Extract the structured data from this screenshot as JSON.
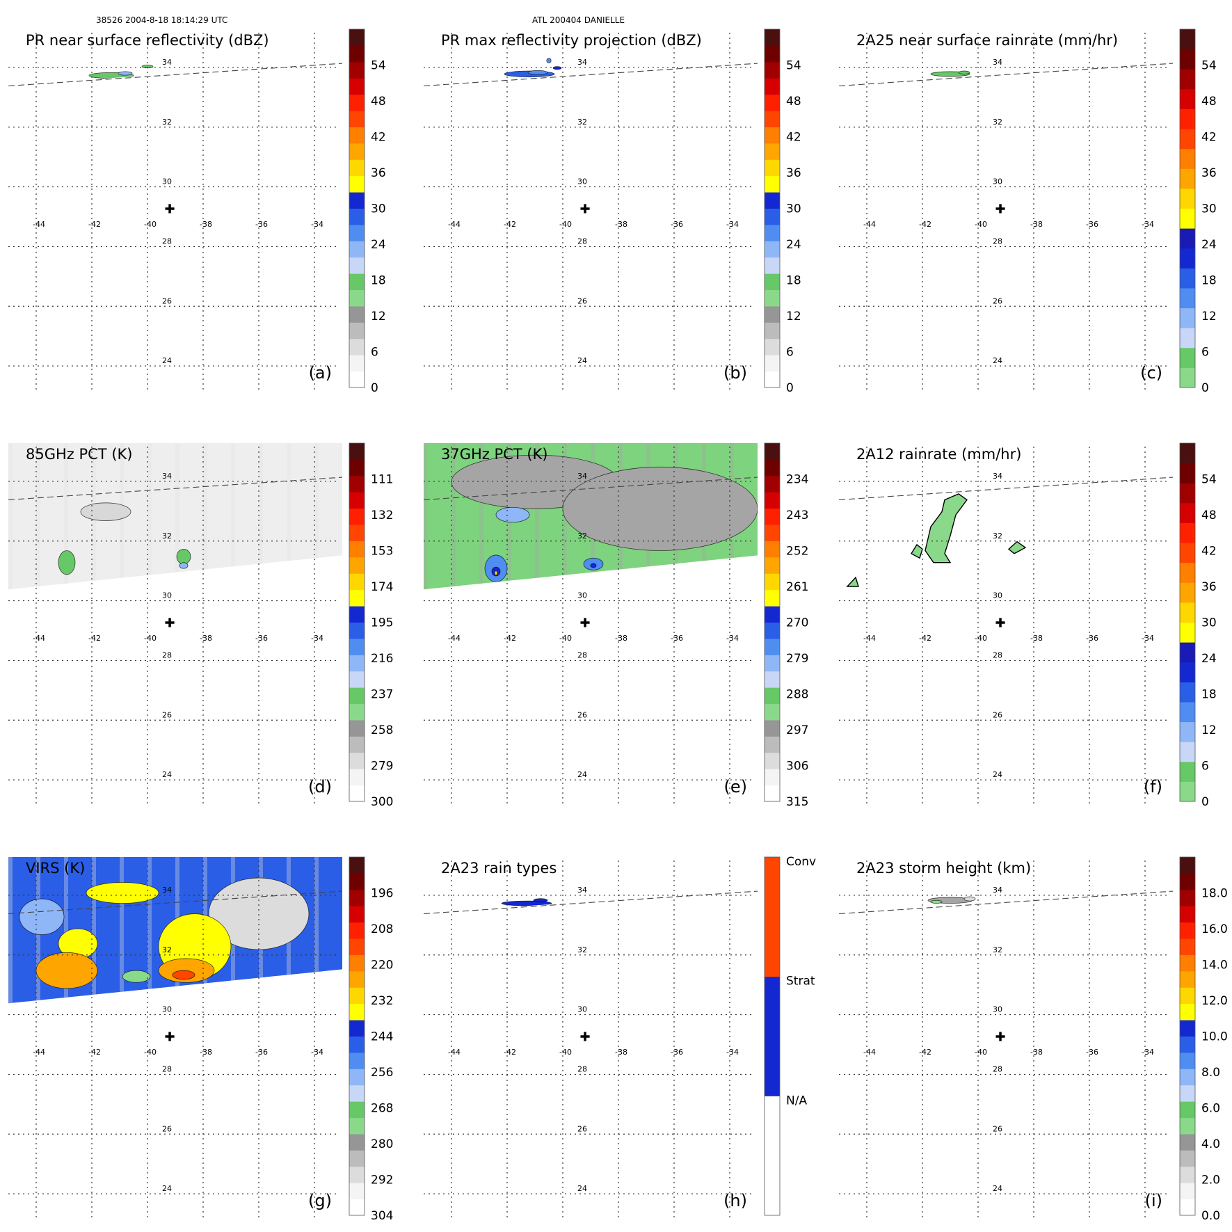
{
  "header": {
    "left": "38526 2004-8-18 18:14:29 UTC",
    "center": "ATL 200404 DANIELLE"
  },
  "chart_data": {
    "type": "map_panels",
    "center_marker": {
      "lon": -39.2,
      "lat": 29.0,
      "symbol": "✚"
    },
    "grid": {
      "lon_ticks": [
        -44,
        -42,
        -40,
        -38,
        -36,
        -34
      ],
      "lon_labels": [
        "-44",
        "-42",
        "-40",
        "-38",
        "-36",
        "-34"
      ],
      "lat_ticks": [
        34,
        32,
        30,
        28,
        26,
        24
      ],
      "lat_labels": [
        "34",
        "32",
        "30",
        "28",
        "26",
        "24"
      ],
      "lon_range": [
        -45,
        -33
      ],
      "lat_range": [
        23,
        35
      ],
      "style": "dotted"
    },
    "panels": [
      {
        "label": "(a)",
        "title": "PR near surface reflectivity (dBZ)",
        "swath": "pr",
        "colorbar": {
          "type": "levels",
          "ticks": [
            "0",
            "6",
            "12",
            "18",
            "24",
            "30",
            "36",
            "42",
            "48",
            "54"
          ],
          "segments": [
            "#ffffff",
            "#f4f4f4",
            "#dcdcdc",
            "#bcbcbc",
            "#969696",
            "#8ad98a",
            "#66c866",
            "#c8d6f8",
            "#8fb7f7",
            "#4f8ef0",
            "#2a5ee6",
            "#1428d2",
            "#ffff00",
            "#ffd700",
            "#ffa500",
            "#ff7f00",
            "#ff4500",
            "#ff2000",
            "#d60000",
            "#a00000",
            "#6e0000",
            "#4a1010"
          ]
        },
        "features": [
          {
            "kind": "rain",
            "lon": -41.3,
            "lat": 33.45,
            "rx": 0.8,
            "ry": 0.1,
            "color": "#66c866"
          },
          {
            "kind": "rain",
            "lon": -40.8,
            "lat": 33.52,
            "rx": 0.25,
            "ry": 0.06,
            "color": "#8fb7f7"
          },
          {
            "kind": "rain",
            "lon": -40.0,
            "lat": 33.75,
            "rx": 0.2,
            "ry": 0.05,
            "color": "#66c866"
          }
        ]
      },
      {
        "label": "(b)",
        "title": "PR max reflectivity projection (dBZ)",
        "swath": "pr",
        "colorbar": {
          "type": "levels",
          "ticks": [
            "0",
            "6",
            "12",
            "18",
            "24",
            "30",
            "36",
            "42",
            "48",
            "54"
          ],
          "segments": [
            "#ffffff",
            "#f4f4f4",
            "#dcdcdc",
            "#bcbcbc",
            "#969696",
            "#8ad98a",
            "#66c866",
            "#c8d6f8",
            "#8fb7f7",
            "#4f8ef0",
            "#2a5ee6",
            "#1428d2",
            "#ffff00",
            "#ffd700",
            "#ffa500",
            "#ff7f00",
            "#ff4500",
            "#ff2000",
            "#d60000",
            "#a00000",
            "#6e0000",
            "#4a1010"
          ]
        },
        "features": [
          {
            "kind": "rain",
            "lon": -41.2,
            "lat": 33.5,
            "rx": 0.9,
            "ry": 0.1,
            "color": "#2a5ee6"
          },
          {
            "kind": "rain",
            "lon": -40.9,
            "lat": 33.55,
            "rx": 0.35,
            "ry": 0.07,
            "color": "#4f8ef0"
          },
          {
            "kind": "rain",
            "lon": -40.5,
            "lat": 33.95,
            "rx": 0.08,
            "ry": 0.08,
            "color": "#4f8ef0"
          },
          {
            "kind": "rain",
            "lon": -40.2,
            "lat": 33.7,
            "rx": 0.15,
            "ry": 0.05,
            "color": "#1428d2"
          }
        ]
      },
      {
        "label": "(c)",
        "title": "2A25 near surface rainrate (mm/hr)",
        "swath": "pr",
        "colorbar": {
          "type": "levels",
          "ticks": [
            "0",
            "6",
            "12",
            "18",
            "24",
            "30",
            "36",
            "42",
            "48",
            "54"
          ],
          "segments": [
            "#8ad98a",
            "#66c866",
            "#c8d6f8",
            "#8fb7f7",
            "#4f8ef0",
            "#2a5ee6",
            "#1428d2",
            "#1a1ab4",
            "#ffff00",
            "#ffd700",
            "#ffa500",
            "#ff7f00",
            "#ff4500",
            "#ff2000",
            "#d60000",
            "#a00000",
            "#6e0000",
            "#4a1010"
          ]
        },
        "features": [
          {
            "kind": "rain",
            "lon": -41.0,
            "lat": 33.5,
            "rx": 0.7,
            "ry": 0.08,
            "color": "#66c866"
          },
          {
            "kind": "rain",
            "lon": -40.5,
            "lat": 33.55,
            "rx": 0.2,
            "ry": 0.05,
            "color": "#66c866"
          }
        ]
      },
      {
        "label": "(d)",
        "title": "85GHz PCT (K)",
        "swath": "tmi",
        "colorbar": {
          "type": "levels",
          "ticks": [
            "300",
            "279",
            "258",
            "237",
            "216",
            "195",
            "174",
            "153",
            "132",
            "111"
          ],
          "segments": [
            "#ffffff",
            "#f4f4f4",
            "#dcdcdc",
            "#bcbcbc",
            "#969696",
            "#8ad98a",
            "#66c866",
            "#c8d6f8",
            "#8fb7f7",
            "#4f8ef0",
            "#2a5ee6",
            "#1428d2",
            "#ffff00",
            "#ffd700",
            "#ffa500",
            "#ff7f00",
            "#ff4500",
            "#ff2000",
            "#d60000",
            "#a00000",
            "#6e0000",
            "#4a1010"
          ]
        },
        "background": {
          "color": "#eeeeee",
          "alt": "#e2e2e2"
        },
        "features": [
          {
            "kind": "rain",
            "lon": -42.9,
            "lat": 31.0,
            "rx": 0.3,
            "ry": 0.4,
            "color": "#66c866"
          },
          {
            "kind": "rain",
            "lon": -38.7,
            "lat": 31.2,
            "rx": 0.25,
            "ry": 0.25,
            "color": "#66c866"
          },
          {
            "kind": "rain",
            "lon": -38.7,
            "lat": 30.9,
            "rx": 0.15,
            "ry": 0.1,
            "color": "#8fb7f7"
          },
          {
            "kind": "rain",
            "lon": -41.5,
            "lat": 32.7,
            "rx": 0.9,
            "ry": 0.3,
            "color": "#d8d8d8"
          }
        ]
      },
      {
        "label": "(e)",
        "title": "37GHz PCT (K)",
        "swath": "tmi",
        "colorbar": {
          "type": "levels",
          "ticks": [
            "315",
            "306",
            "297",
            "288",
            "279",
            "270",
            "261",
            "252",
            "243",
            "234"
          ],
          "segments": [
            "#ffffff",
            "#f4f4f4",
            "#dcdcdc",
            "#bcbcbc",
            "#969696",
            "#8ad98a",
            "#66c866",
            "#c8d6f8",
            "#8fb7f7",
            "#4f8ef0",
            "#2a5ee6",
            "#1428d2",
            "#ffff00",
            "#ffd700",
            "#ffa500",
            "#ff7f00",
            "#ff4500",
            "#ff2000",
            "#d60000",
            "#a00000",
            "#6e0000",
            "#4a1010"
          ]
        },
        "background": {
          "color": "#7ed37e",
          "alt": "#a5a5a5"
        },
        "features": [
          {
            "kind": "rain",
            "lon": -41.0,
            "lat": 33.7,
            "rx": 3.0,
            "ry": 0.9,
            "color": "#a5a5a5"
          },
          {
            "kind": "rain",
            "lon": -36.5,
            "lat": 32.8,
            "rx": 3.5,
            "ry": 1.4,
            "color": "#a5a5a5"
          },
          {
            "kind": "rain",
            "lon": -42.4,
            "lat": 30.8,
            "rx": 0.4,
            "ry": 0.45,
            "color": "#4f8ef0"
          },
          {
            "kind": "rain",
            "lon": -42.4,
            "lat": 30.7,
            "rx": 0.15,
            "ry": 0.15,
            "color": "#1428d2"
          },
          {
            "kind": "rain",
            "lon": -42.4,
            "lat": 30.65,
            "rx": 0.05,
            "ry": 0.07,
            "color": "#ffd700"
          },
          {
            "kind": "rain",
            "lon": -38.9,
            "lat": 30.95,
            "rx": 0.35,
            "ry": 0.2,
            "color": "#4f8ef0"
          },
          {
            "kind": "rain",
            "lon": -38.9,
            "lat": 30.9,
            "rx": 0.1,
            "ry": 0.07,
            "color": "#1428d2"
          },
          {
            "kind": "rain",
            "lon": -41.8,
            "lat": 32.6,
            "rx": 0.6,
            "ry": 0.25,
            "color": "#8fb7f7"
          }
        ]
      },
      {
        "label": "(f)",
        "title": "2A12 rainrate (mm/hr)",
        "swath": "tmi_clear",
        "colorbar": {
          "type": "levels",
          "ticks": [
            "0",
            "6",
            "12",
            "18",
            "24",
            "30",
            "36",
            "42",
            "48",
            "54"
          ],
          "segments": [
            "#8ad98a",
            "#66c866",
            "#c8d6f8",
            "#8fb7f7",
            "#4f8ef0",
            "#2a5ee6",
            "#1428d2",
            "#1a1ab4",
            "#ffff00",
            "#ffd700",
            "#ffa500",
            "#ff7f00",
            "#ff4500",
            "#ff2000",
            "#d60000",
            "#a00000",
            "#6e0000",
            "#4a1010"
          ]
        },
        "features": [
          {
            "kind": "poly",
            "color": "#8ad98a",
            "lonlat": [
              [
                -41.6,
                31.0
              ],
              [
                -41.9,
                31.4
              ],
              [
                -41.7,
                32.2
              ],
              [
                -41.3,
                32.7
              ],
              [
                -41.2,
                33.1
              ],
              [
                -40.7,
                33.3
              ],
              [
                -40.4,
                33.1
              ],
              [
                -40.8,
                32.6
              ],
              [
                -41.0,
                31.9
              ],
              [
                -41.2,
                31.3
              ],
              [
                -41.0,
                31.0
              ]
            ]
          },
          {
            "kind": "poly",
            "color": "#8ad98a",
            "lonlat": [
              [
                -42.4,
                31.3
              ],
              [
                -42.2,
                31.6
              ],
              [
                -42.0,
                31.45
              ],
              [
                -42.1,
                31.15
              ]
            ]
          },
          {
            "kind": "poly",
            "color": "#8ad98a",
            "lonlat": [
              [
                -38.9,
                31.45
              ],
              [
                -38.6,
                31.7
              ],
              [
                -38.3,
                31.5
              ],
              [
                -38.7,
                31.3
              ]
            ]
          },
          {
            "kind": "poly",
            "color": "#8ad98a",
            "lonlat": [
              [
                -44.7,
                30.2
              ],
              [
                -44.4,
                30.5
              ],
              [
                -44.3,
                30.2
              ]
            ]
          }
        ]
      },
      {
        "label": "(g)",
        "title": "VIRS (K)",
        "swath": "virs",
        "colorbar": {
          "type": "levels",
          "ticks": [
            "304",
            "292",
            "280",
            "268",
            "256",
            "244",
            "232",
            "220",
            "208",
            "196"
          ],
          "segments": [
            "#ffffff",
            "#f4f4f4",
            "#dcdcdc",
            "#bcbcbc",
            "#969696",
            "#8ad98a",
            "#66c866",
            "#c8d6f8",
            "#8fb7f7",
            "#4f8ef0",
            "#2a5ee6",
            "#1428d2",
            "#ffff00",
            "#ffd700",
            "#ffa500",
            "#ff7f00",
            "#ff4500",
            "#ff2000",
            "#d60000",
            "#a00000",
            "#6e0000",
            "#4a1010"
          ]
        },
        "background": {
          "color": "#2a5ee6",
          "alt": "#dcdcdc"
        },
        "features": [
          {
            "kind": "rain",
            "lon": -36.0,
            "lat": 33.1,
            "rx": 1.8,
            "ry": 1.2,
            "color": "#dcdcdc"
          },
          {
            "kind": "rain",
            "lon": -43.8,
            "lat": 33.0,
            "rx": 0.8,
            "ry": 0.6,
            "color": "#8fb7f7"
          },
          {
            "kind": "rain",
            "lon": -40.9,
            "lat": 33.8,
            "rx": 1.3,
            "ry": 0.35,
            "color": "#ffff00"
          },
          {
            "kind": "rain",
            "lon": -42.5,
            "lat": 32.1,
            "rx": 0.7,
            "ry": 0.5,
            "color": "#ffff00"
          },
          {
            "kind": "rain",
            "lon": -38.3,
            "lat": 32.0,
            "rx": 1.3,
            "ry": 1.1,
            "color": "#ffff00"
          },
          {
            "kind": "rain",
            "lon": -42.9,
            "lat": 31.2,
            "rx": 1.1,
            "ry": 0.6,
            "color": "#ffa500"
          },
          {
            "kind": "rain",
            "lon": -38.6,
            "lat": 31.2,
            "rx": 1.0,
            "ry": 0.4,
            "color": "#ffa500"
          },
          {
            "kind": "rain",
            "lon": -38.7,
            "lat": 31.05,
            "rx": 0.4,
            "ry": 0.15,
            "color": "#ff4500"
          },
          {
            "kind": "rain",
            "lon": -40.4,
            "lat": 31.0,
            "rx": 0.5,
            "ry": 0.2,
            "color": "#8ad98a"
          }
        ]
      },
      {
        "label": "(h)",
        "title": "2A23 rain types",
        "swath": "pr",
        "colorbar": {
          "type": "categories",
          "ticks": [
            "N/A",
            "Strat",
            "Conv"
          ],
          "segments": [
            "#ffffff",
            "#1428d2",
            "#ff4500"
          ]
        },
        "features": [
          {
            "kind": "rain",
            "lon": -41.3,
            "lat": 33.45,
            "rx": 0.9,
            "ry": 0.08,
            "color": "#1428d2"
          },
          {
            "kind": "rain",
            "lon": -40.8,
            "lat": 33.55,
            "rx": 0.25,
            "ry": 0.06,
            "color": "#1428d2"
          }
        ]
      },
      {
        "label": "(i)",
        "title": "2A23 storm height (km)",
        "swath": "pr",
        "colorbar": {
          "type": "levels",
          "ticks": [
            "0.0",
            "2.0",
            "4.0",
            "6.0",
            "8.0",
            "10.0",
            "12.0",
            "14.0",
            "16.0",
            "18.0"
          ],
          "segments": [
            "#ffffff",
            "#f4f4f4",
            "#dcdcdc",
            "#bcbcbc",
            "#969696",
            "#8ad98a",
            "#66c866",
            "#c8d6f8",
            "#8fb7f7",
            "#4f8ef0",
            "#2a5ee6",
            "#1428d2",
            "#ffff00",
            "#ffd700",
            "#ffa500",
            "#ff7f00",
            "#ff4500",
            "#ff2000",
            "#d60000",
            "#a00000",
            "#6e0000",
            "#4a1010"
          ]
        },
        "features": [
          {
            "kind": "rain",
            "lon": -41.0,
            "lat": 33.55,
            "rx": 0.8,
            "ry": 0.1,
            "color": "#a5a5a5"
          },
          {
            "kind": "rain",
            "lon": -40.3,
            "lat": 33.6,
            "rx": 0.2,
            "ry": 0.07,
            "color": "#dcdcdc"
          },
          {
            "kind": "rain",
            "lon": -41.5,
            "lat": 33.5,
            "rx": 0.2,
            "ry": 0.05,
            "color": "#8ad98a"
          }
        ]
      }
    ]
  }
}
